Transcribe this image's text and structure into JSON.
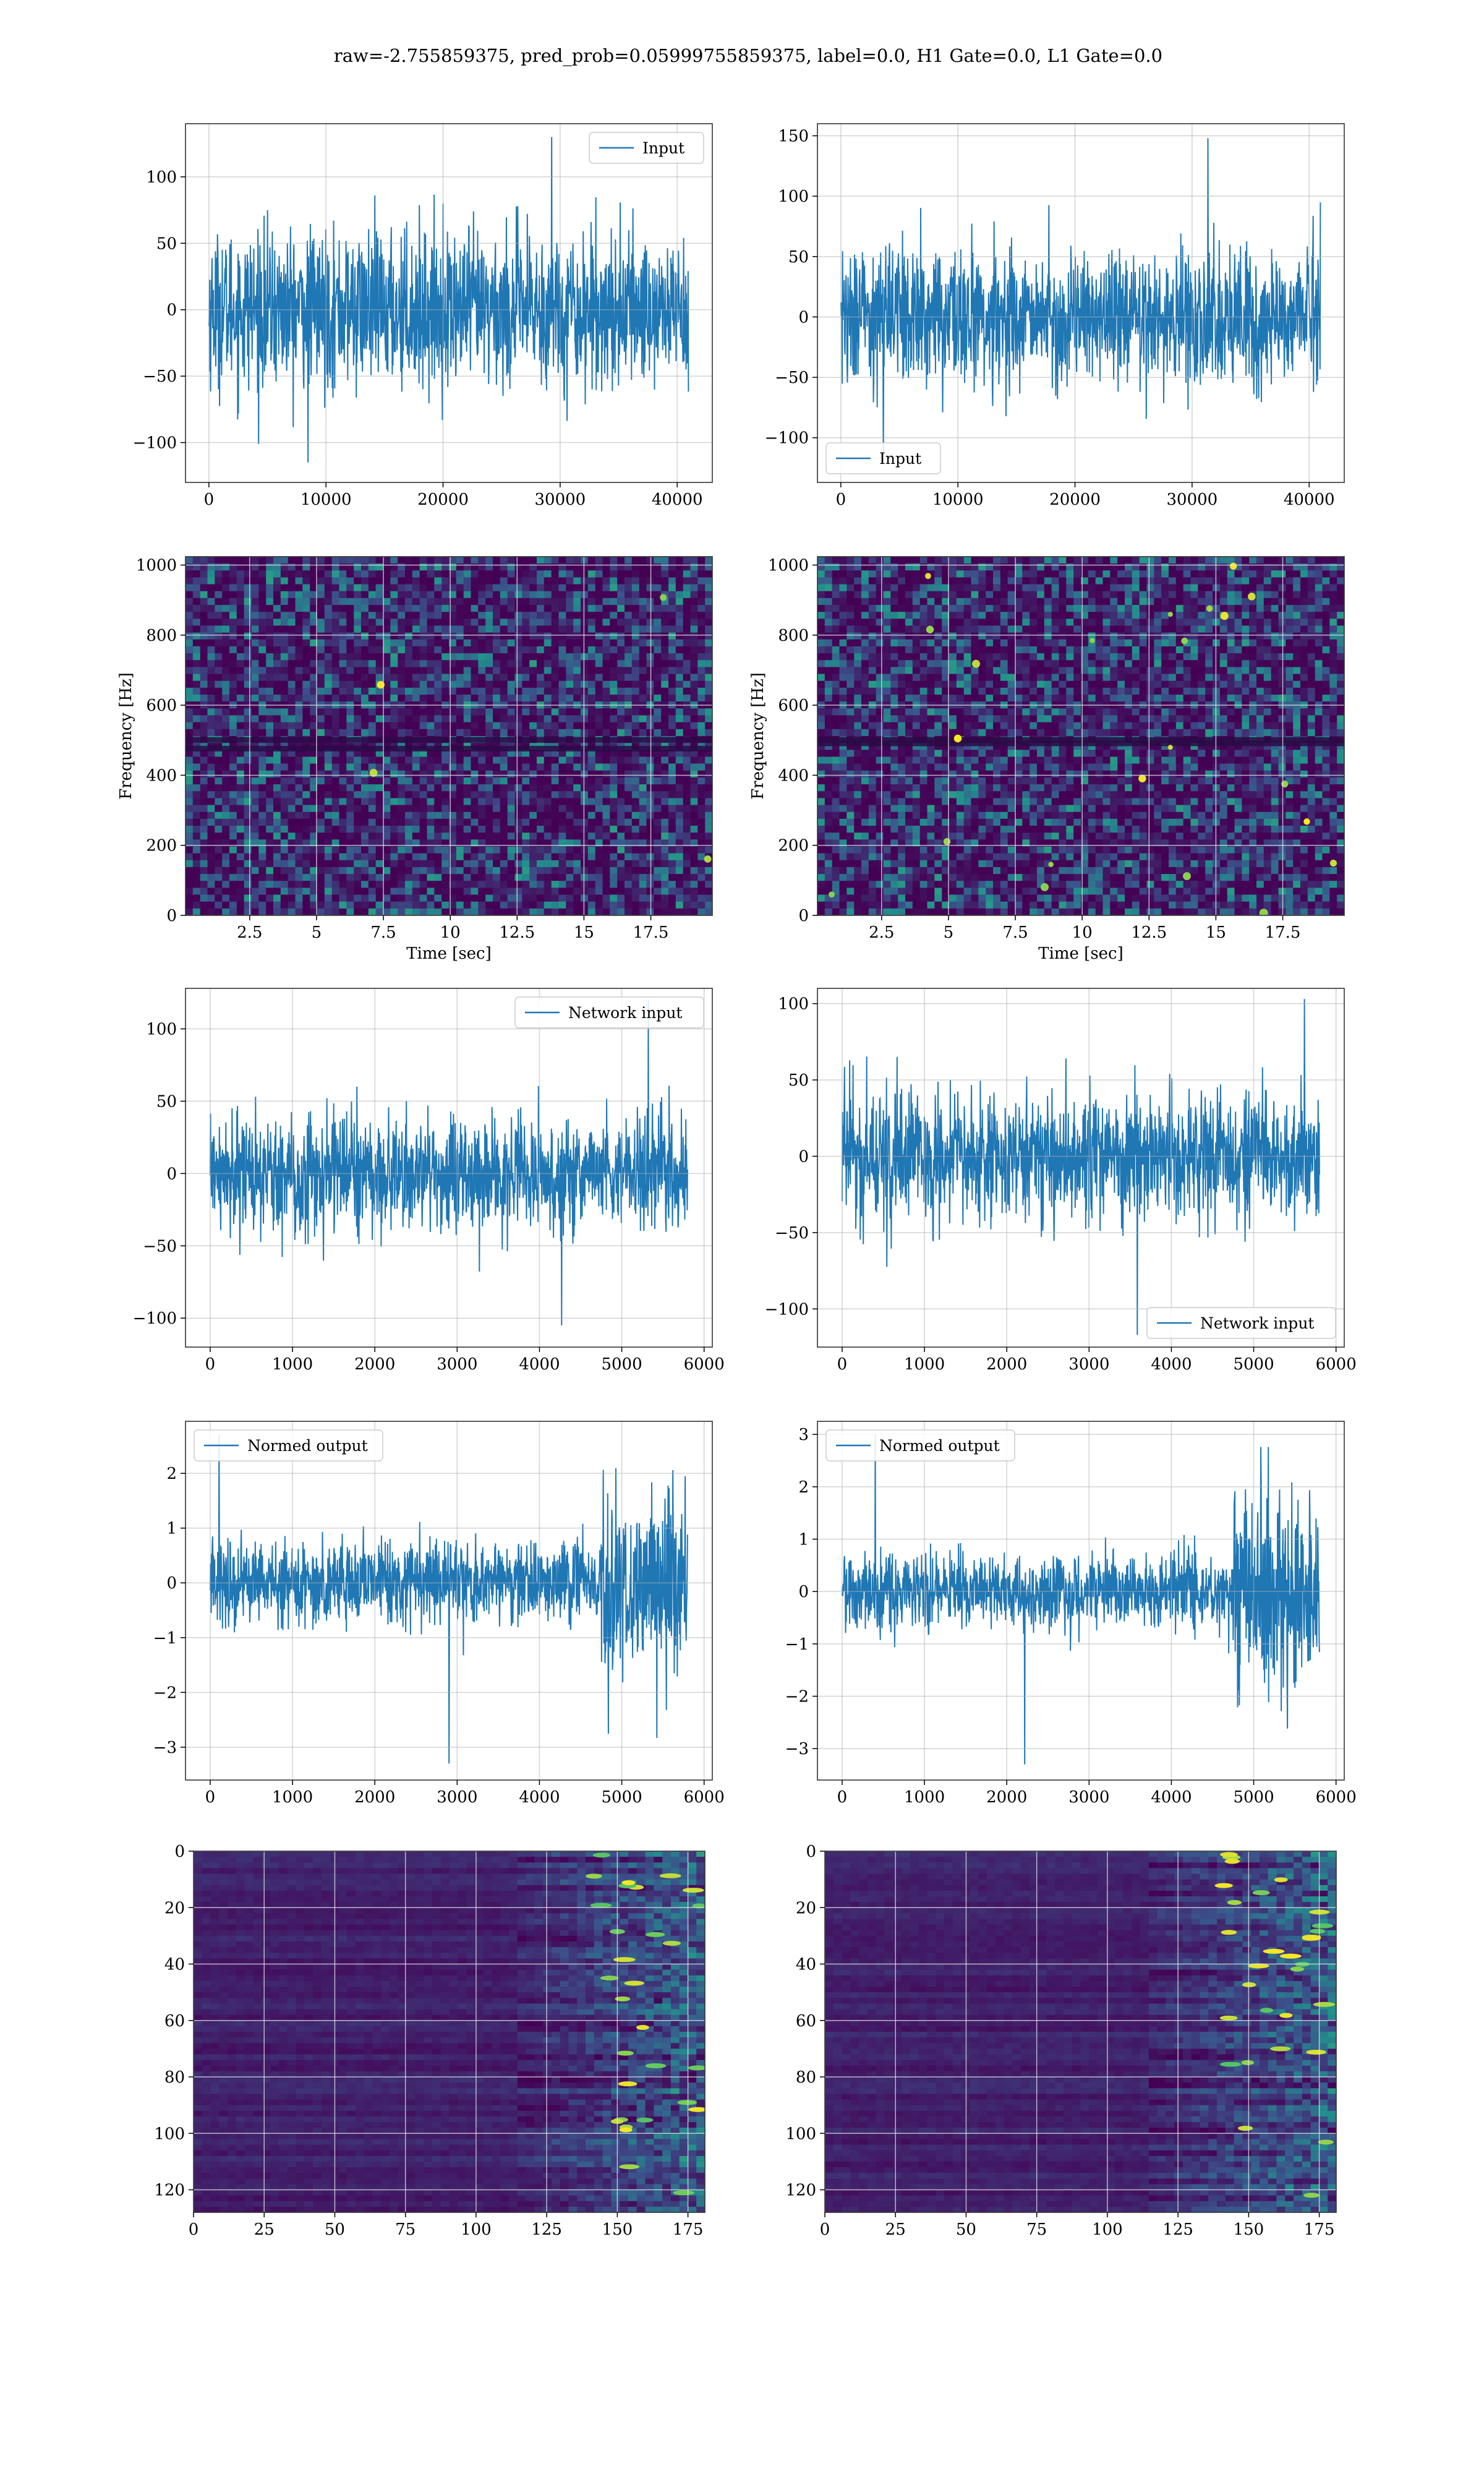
{
  "figure_title": "raw=-2.755859375, pred_prob=0.05999755859375, label=0.0, H1 Gate=0.0, L1 Gate=0.0",
  "colors": {
    "line": "#1f77b4",
    "grid": "#b0b0b0",
    "viridis": [
      "#440154",
      "#3b528b",
      "#21918c",
      "#5ec962",
      "#fde725"
    ]
  },
  "chart_data": [
    {
      "id": "input_h1",
      "type": "line",
      "legend": [
        "Input"
      ],
      "legend_loc": "top-right",
      "series": [
        {
          "name": "Input",
          "n": 40960,
          "amplitude": 42,
          "max": 130,
          "min": -115
        }
      ],
      "xlim": [
        -2000,
        43000
      ],
      "ylim": [
        -130,
        140
      ],
      "xticks": [
        0,
        10000,
        20000,
        30000,
        40000
      ],
      "yticks": [
        -100,
        -50,
        0,
        50,
        100
      ],
      "xlabel": "",
      "ylabel": "",
      "grid": true
    },
    {
      "id": "input_l1",
      "type": "line",
      "legend": [
        "Input"
      ],
      "legend_loc": "bottom-left",
      "series": [
        {
          "name": "Input",
          "n": 40960,
          "amplitude": 40,
          "max": 148,
          "min": -122
        }
      ],
      "xlim": [
        -2000,
        43000
      ],
      "ylim": [
        -137,
        160
      ],
      "xticks": [
        0,
        10000,
        20000,
        30000,
        40000
      ],
      "yticks": [
        -100,
        -50,
        0,
        50,
        100,
        150
      ],
      "xlabel": "",
      "ylabel": "",
      "grid": true
    },
    {
      "id": "spec_h1",
      "type": "heatmap",
      "xlim": [
        0.1,
        19.8
      ],
      "ylim": [
        0,
        1024
      ],
      "xticks": [
        2.5,
        5.0,
        7.5,
        10.0,
        12.5,
        15.0,
        17.5
      ],
      "yticks": [
        0,
        200,
        400,
        600,
        800,
        1000
      ],
      "xlabel": "Time [sec]",
      "ylabel": "Frequency [Hz]",
      "grid": true,
      "line_rows_hz": [
        475,
        500
      ],
      "hot_spots": 4
    },
    {
      "id": "spec_l1",
      "type": "heatmap",
      "xlim": [
        0.1,
        19.8
      ],
      "ylim": [
        0,
        1024
      ],
      "xticks": [
        2.5,
        5.0,
        7.5,
        10.0,
        12.5,
        15.0,
        17.5
      ],
      "yticks": [
        0,
        200,
        400,
        600,
        800,
        1000
      ],
      "xlabel": "Time [sec]",
      "ylabel": "Frequency [Hz]",
      "grid": true,
      "line_rows_hz": [
        490,
        500
      ],
      "hot_spots": 22
    },
    {
      "id": "netin_h1",
      "type": "line",
      "legend": [
        "Network input"
      ],
      "legend_loc": "top-right",
      "series": [
        {
          "name": "Network input",
          "n": 5800,
          "amplitude": 28,
          "max": 120,
          "min": -105
        }
      ],
      "xlim": [
        -300,
        6100
      ],
      "ylim": [
        -120,
        128
      ],
      "xticks": [
        0,
        1000,
        2000,
        3000,
        4000,
        5000,
        6000
      ],
      "yticks": [
        -100,
        -50,
        0,
        50,
        100
      ],
      "xlabel": "",
      "ylabel": "",
      "grid": true
    },
    {
      "id": "netin_l1",
      "type": "line",
      "legend": [
        "Network input"
      ],
      "legend_loc": "bottom-right",
      "series": [
        {
          "name": "Network input",
          "n": 5800,
          "amplitude": 30,
          "max": 103,
          "min": -117
        }
      ],
      "xlim": [
        -300,
        6100
      ],
      "ylim": [
        -125,
        110
      ],
      "xticks": [
        0,
        1000,
        2000,
        3000,
        4000,
        5000,
        6000
      ],
      "yticks": [
        -100,
        -50,
        0,
        50,
        100
      ],
      "xlabel": "",
      "ylabel": "",
      "grid": true
    },
    {
      "id": "normed_h1",
      "type": "line",
      "legend": [
        "Normed output"
      ],
      "legend_loc": "top-left",
      "series": [
        {
          "name": "Normed output",
          "n": 5800,
          "amplitude": 0.55,
          "burst_from": 4750,
          "burst_amplitude": 1.3,
          "max": 2.7,
          "min": -3.3
        }
      ],
      "xlim": [
        -300,
        6100
      ],
      "ylim": [
        -3.6,
        2.95
      ],
      "xticks": [
        0,
        1000,
        2000,
        3000,
        4000,
        5000,
        6000
      ],
      "yticks": [
        -3,
        -2,
        -1,
        0,
        1,
        2
      ],
      "xlabel": "",
      "ylabel": "",
      "grid": true
    },
    {
      "id": "normed_l1",
      "type": "line",
      "legend": [
        "Normed output"
      ],
      "legend_loc": "top-left",
      "series": [
        {
          "name": "Normed output",
          "n": 5800,
          "amplitude": 0.5,
          "burst_from": 4750,
          "burst_amplitude": 1.4,
          "max": 3.0,
          "min": -3.3
        }
      ],
      "xlim": [
        -300,
        6100
      ],
      "ylim": [
        -3.6,
        3.25
      ],
      "xticks": [
        0,
        1000,
        2000,
        3000,
        4000,
        5000,
        6000
      ],
      "yticks": [
        -3,
        -2,
        -1,
        0,
        1,
        2,
        3
      ],
      "xlabel": "",
      "ylabel": "",
      "grid": true
    },
    {
      "id": "features_h1",
      "type": "heatmap",
      "xlim": [
        0,
        181
      ],
      "ylim": [
        128,
        0
      ],
      "xticks": [
        0,
        25,
        50,
        75,
        100,
        125,
        150,
        175
      ],
      "yticks": [
        0,
        20,
        40,
        60,
        80,
        100,
        120
      ],
      "xlabel": "",
      "ylabel": "",
      "grid": true
    },
    {
      "id": "features_l1",
      "type": "heatmap",
      "xlim": [
        0,
        181
      ],
      "ylim": [
        128,
        0
      ],
      "xticks": [
        0,
        25,
        50,
        75,
        100,
        125,
        150,
        175
      ],
      "yticks": [
        0,
        20,
        40,
        60,
        80,
        100,
        120
      ],
      "xlabel": "",
      "ylabel": "",
      "grid": true
    }
  ]
}
